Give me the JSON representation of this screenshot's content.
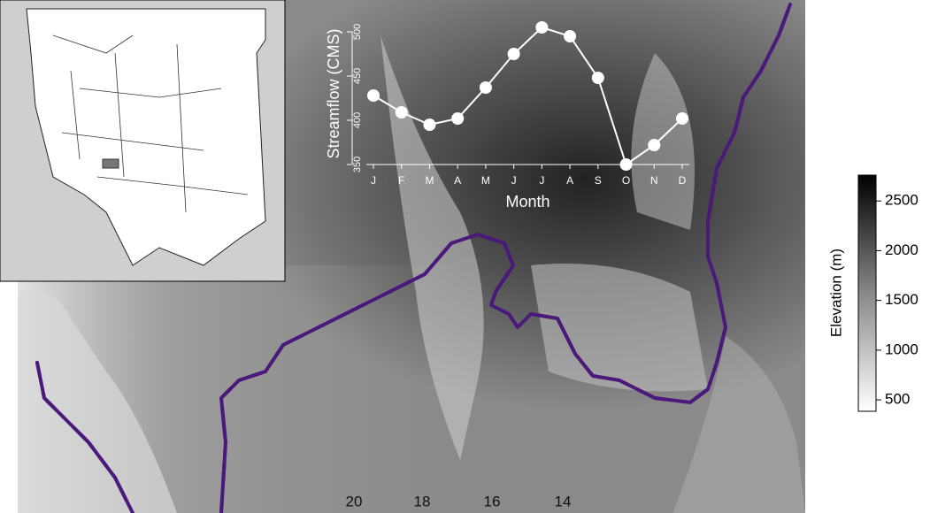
{
  "chart_data": {
    "type": "line",
    "y_label": "Streamflow (CMS)",
    "x_label": "Month",
    "categories": [
      "J",
      "F",
      "M",
      "A",
      "M",
      "J",
      "J",
      "A",
      "S",
      "O",
      "N",
      "D"
    ],
    "values": [
      428,
      409,
      395,
      402,
      437,
      475,
      505,
      495,
      448,
      350,
      372,
      402
    ],
    "color": "#ffffff",
    "ylim": [
      350,
      510
    ],
    "yticks": [
      350,
      400,
      450,
      500
    ]
  },
  "colorbar": {
    "title": "Elevation (m)",
    "lim": [
      385,
      2760
    ],
    "ticks": [
      500,
      1000,
      1500,
      2000,
      2500
    ]
  },
  "map_labels": [
    20,
    18,
    16,
    14
  ]
}
